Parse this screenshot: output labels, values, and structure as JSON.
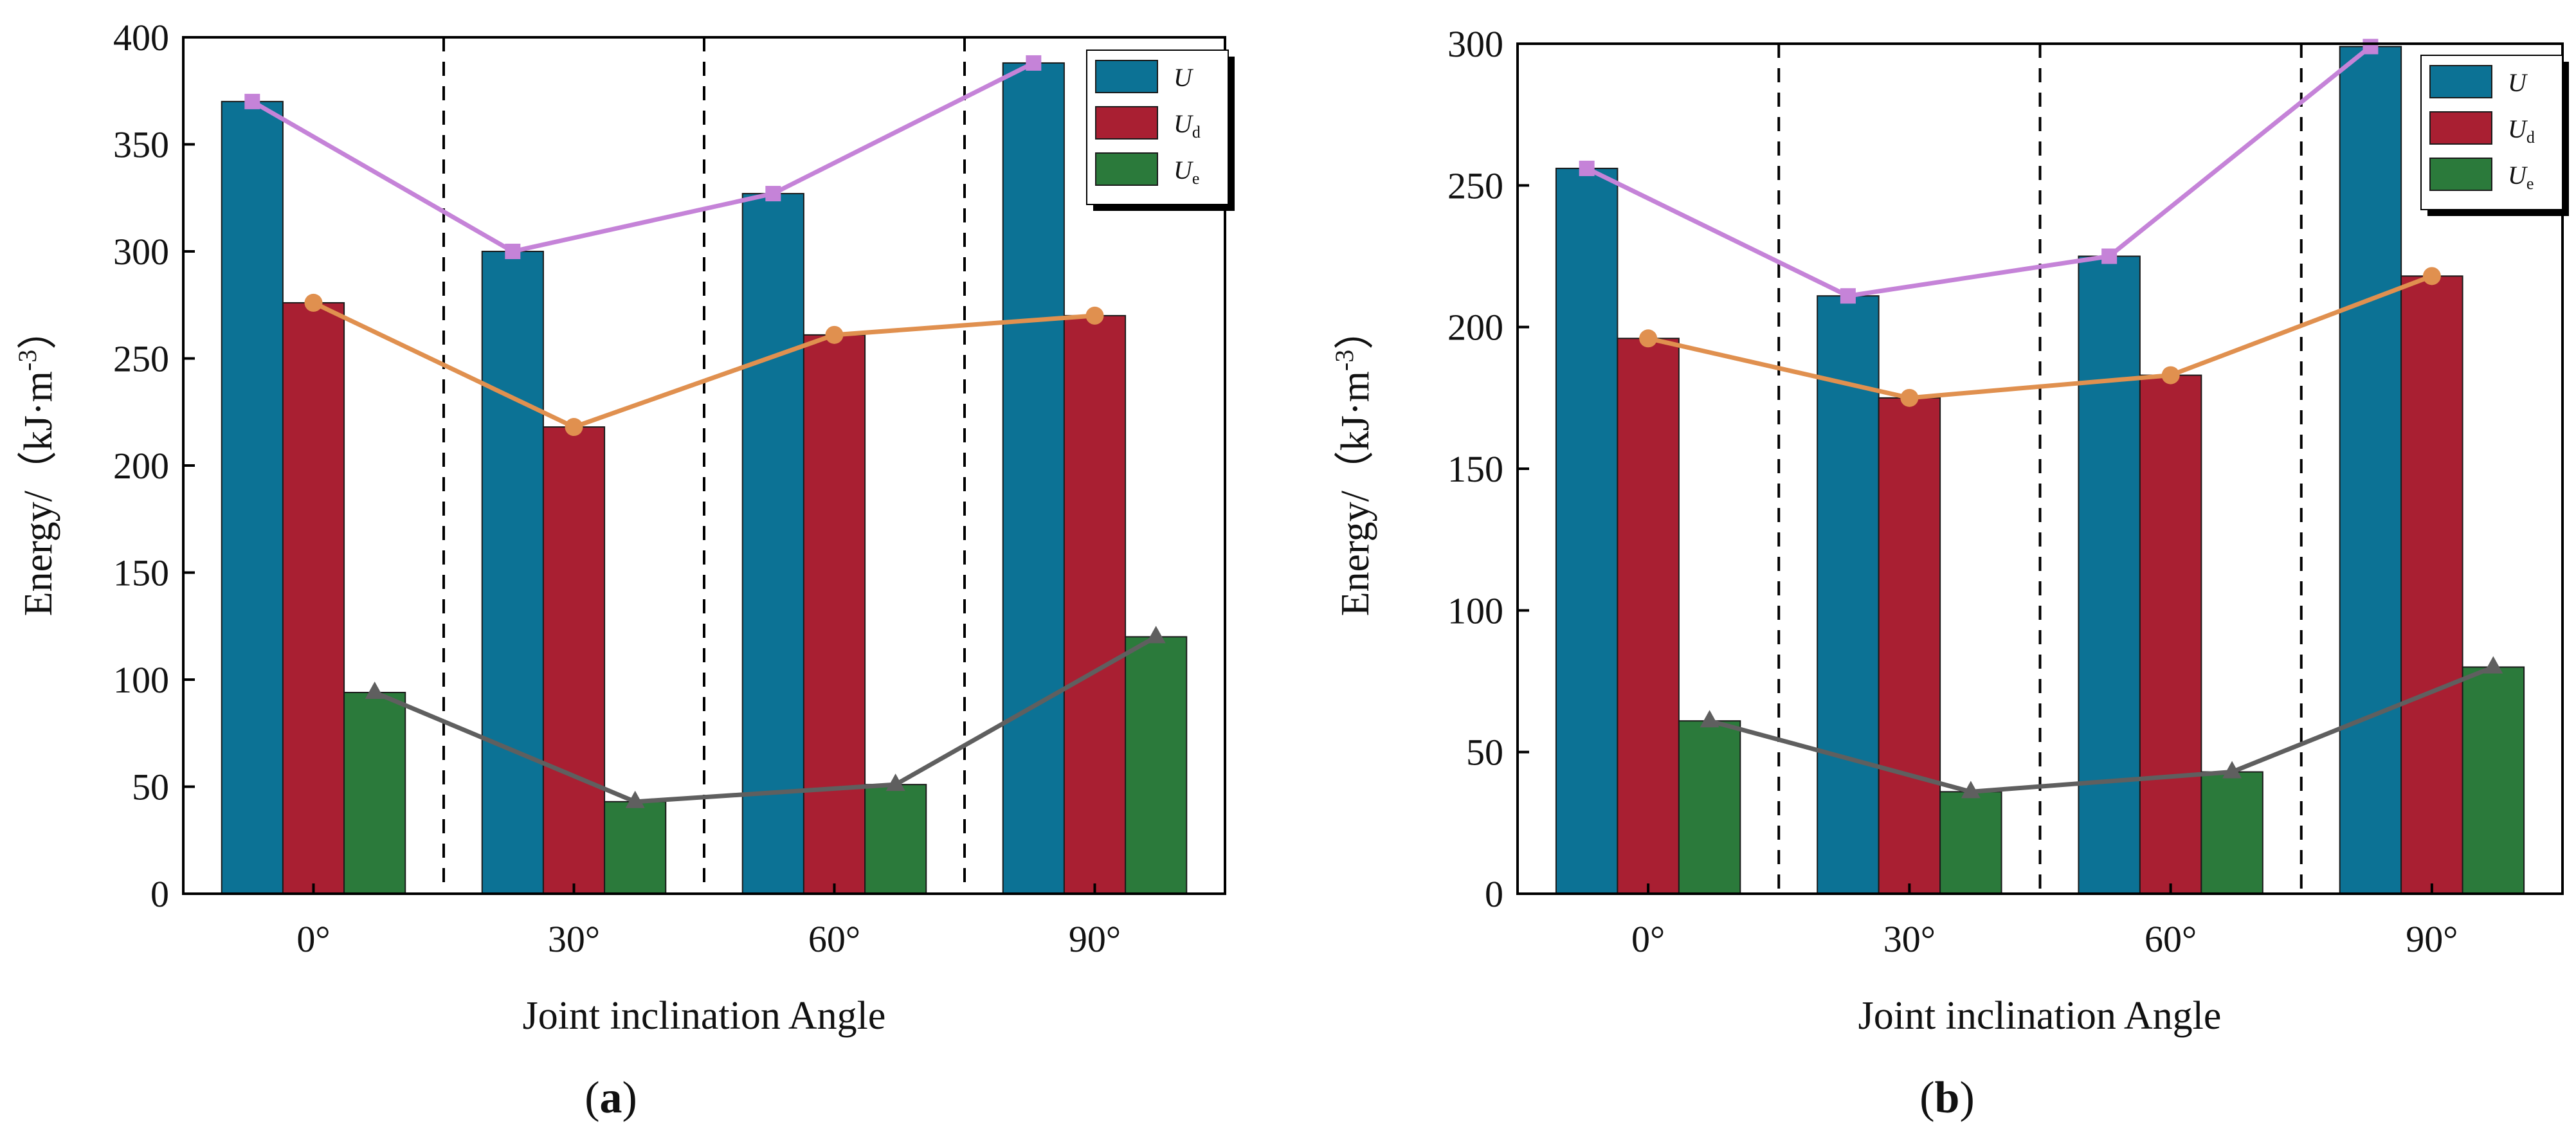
{
  "colors": {
    "U": "#0c7295",
    "Ud": "#a91f32",
    "Ue": "#2b7a3b",
    "line_U": "#c583d8",
    "line_Ud": "#e0904f",
    "line_Ue": "#5f5f5f",
    "axis": "#000000"
  },
  "chart_data": [
    {
      "type": "bar",
      "panel": "(a)",
      "panel_letter": "a",
      "categories": [
        "0°",
        "30°",
        "60°",
        "90°"
      ],
      "series": [
        {
          "key": "U",
          "name": "U",
          "sub": "",
          "values": [
            370,
            300,
            327,
            388
          ]
        },
        {
          "key": "Ud",
          "name": "U",
          "sub": "d",
          "values": [
            276,
            218,
            261,
            270
          ]
        },
        {
          "key": "Ue",
          "name": "U",
          "sub": "e",
          "values": [
            94,
            43,
            51,
            120
          ]
        }
      ],
      "ylim": [
        0,
        400
      ],
      "yticks": [
        0,
        50,
        100,
        150,
        200,
        250,
        300,
        350,
        400
      ],
      "xlabel": "Joint inclination Angle",
      "ylabel": "Energy/（kJ·m",
      "ylabel_sup": "-3",
      "ylabel_close": "）",
      "legend": "top-right"
    },
    {
      "type": "bar",
      "panel": "(b)",
      "panel_letter": "b",
      "categories": [
        "0°",
        "30°",
        "60°",
        "90°"
      ],
      "series": [
        {
          "key": "U",
          "name": "U",
          "sub": "",
          "values": [
            256,
            211,
            225,
            299
          ]
        },
        {
          "key": "Ud",
          "name": "U",
          "sub": "d",
          "values": [
            196,
            175,
            183,
            218
          ]
        },
        {
          "key": "Ue",
          "name": "U",
          "sub": "e",
          "values": [
            61,
            36,
            43,
            80
          ]
        }
      ],
      "ylim": [
        0,
        300
      ],
      "yticks": [
        0,
        50,
        100,
        150,
        200,
        250,
        300
      ],
      "xlabel": "Joint inclination Angle",
      "ylabel": "Energy/（kJ·m",
      "ylabel_sup": "-3",
      "ylabel_close": "）",
      "legend": "top-right"
    }
  ]
}
